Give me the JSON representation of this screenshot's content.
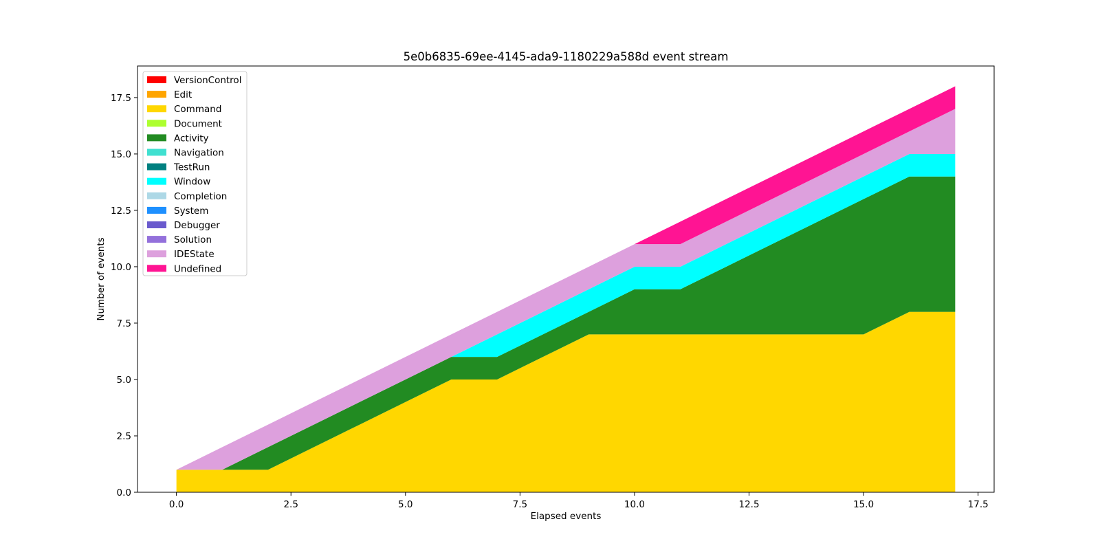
{
  "chart_data": {
    "type": "area",
    "stacked": true,
    "title": "5e0b6835-69ee-4145-ada9-1180229a588d event stream",
    "xlabel": "Elapsed events",
    "ylabel": "Number of events",
    "xlim": [
      -0.85,
      17.85
    ],
    "ylim": [
      0,
      18.9
    ],
    "xticks": [
      0,
      2.5,
      5,
      7.5,
      10,
      12.5,
      15,
      17.5
    ],
    "xtick_labels": [
      "0.0",
      "2.5",
      "5.0",
      "7.5",
      "10.0",
      "12.5",
      "15.0",
      "17.5"
    ],
    "yticks": [
      0,
      2.5,
      5,
      7.5,
      10,
      12.5,
      15,
      17.5
    ],
    "ytick_labels": [
      "0.0",
      "2.5",
      "5.0",
      "7.5",
      "10.0",
      "12.5",
      "15.0",
      "17.5"
    ],
    "grid": false,
    "legend_position": "top-left",
    "x": [
      0,
      1,
      2,
      3,
      4,
      5,
      6,
      7,
      8,
      9,
      10,
      11,
      12,
      13,
      14,
      15,
      16,
      17
    ],
    "series": [
      {
        "name": "VersionControl",
        "color": "#ff0000",
        "values": [
          0,
          0,
          0,
          0,
          0,
          0,
          0,
          0,
          0,
          0,
          0,
          0,
          0,
          0,
          0,
          0,
          0,
          0
        ]
      },
      {
        "name": "Edit",
        "color": "#ffa500",
        "values": [
          0,
          0,
          0,
          0,
          0,
          0,
          0,
          0,
          0,
          0,
          0,
          0,
          0,
          0,
          0,
          0,
          0,
          0
        ]
      },
      {
        "name": "Command",
        "color": "#ffd700",
        "values": [
          1,
          1,
          1,
          2,
          3,
          4,
          5,
          5,
          6,
          7,
          7,
          7,
          7,
          7,
          7,
          7,
          8,
          8
        ]
      },
      {
        "name": "Document",
        "color": "#adff2f",
        "values": [
          0,
          0,
          0,
          0,
          0,
          0,
          0,
          0,
          0,
          0,
          0,
          0,
          0,
          0,
          0,
          0,
          0,
          0
        ]
      },
      {
        "name": "Activity",
        "color": "#228b22",
        "values": [
          0,
          0,
          1,
          1,
          1,
          1,
          1,
          1,
          1,
          1,
          2,
          2,
          3,
          4,
          5,
          6,
          6,
          6
        ]
      },
      {
        "name": "Navigation",
        "color": "#40e0d0",
        "values": [
          0,
          0,
          0,
          0,
          0,
          0,
          0,
          0,
          0,
          0,
          0,
          0,
          0,
          0,
          0,
          0,
          0,
          0
        ]
      },
      {
        "name": "TestRun",
        "color": "#008080",
        "values": [
          0,
          0,
          0,
          0,
          0,
          0,
          0,
          0,
          0,
          0,
          0,
          0,
          0,
          0,
          0,
          0,
          0,
          0
        ]
      },
      {
        "name": "Window",
        "color": "#00ffff",
        "values": [
          0,
          0,
          0,
          0,
          0,
          0,
          0,
          1,
          1,
          1,
          1,
          1,
          1,
          1,
          1,
          1,
          1,
          1
        ]
      },
      {
        "name": "Completion",
        "color": "#add8e6",
        "values": [
          0,
          0,
          0,
          0,
          0,
          0,
          0,
          0,
          0,
          0,
          0,
          0,
          0,
          0,
          0,
          0,
          0,
          0
        ]
      },
      {
        "name": "System",
        "color": "#1e90ff",
        "values": [
          0,
          0,
          0,
          0,
          0,
          0,
          0,
          0,
          0,
          0,
          0,
          0,
          0,
          0,
          0,
          0,
          0,
          0
        ]
      },
      {
        "name": "Debugger",
        "color": "#6a5acd",
        "values": [
          0,
          0,
          0,
          0,
          0,
          0,
          0,
          0,
          0,
          0,
          0,
          0,
          0,
          0,
          0,
          0,
          0,
          0
        ]
      },
      {
        "name": "Solution",
        "color": "#9370db",
        "values": [
          0,
          0,
          0,
          0,
          0,
          0,
          0,
          0,
          0,
          0,
          0,
          0,
          0,
          0,
          0,
          0,
          0,
          0
        ]
      },
      {
        "name": "IDEState",
        "color": "#dda0dd",
        "values": [
          0,
          1,
          1,
          1,
          1,
          1,
          1,
          1,
          1,
          1,
          1,
          1,
          1,
          1,
          1,
          1,
          1,
          2
        ]
      },
      {
        "name": " Undefined",
        "color": "#ff1493",
        "values": [
          0,
          0,
          0,
          0,
          0,
          0,
          0,
          0,
          0,
          0,
          0,
          1,
          1,
          1,
          1,
          1,
          1,
          1
        ]
      }
    ]
  }
}
